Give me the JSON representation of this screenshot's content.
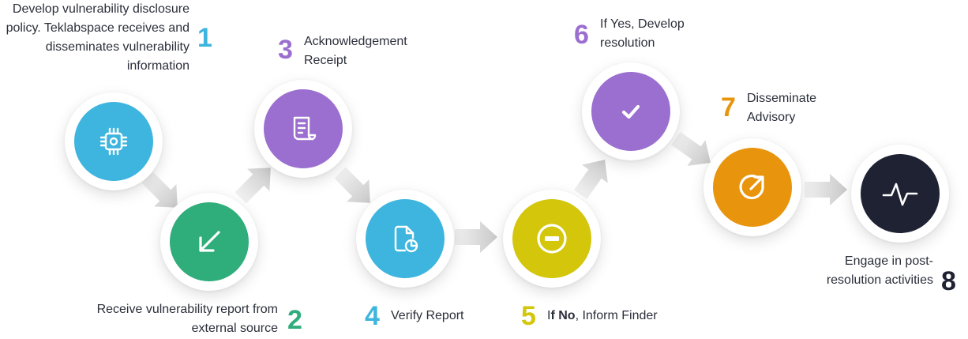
{
  "steps": [
    {
      "number": "1",
      "label": "Develop vulnerability disclosure policy. Teklabspace receives and disseminates vulnerability information",
      "color": "#3db5de",
      "icon": "chip-icon"
    },
    {
      "number": "2",
      "label": "Receive vulnerability report from external source",
      "color": "#2fad7b",
      "icon": "arrow-down-left-icon"
    },
    {
      "number": "3",
      "label": "Acknowledgement Receipt",
      "color": "#9b6fcf",
      "icon": "receipt-icon"
    },
    {
      "number": "4",
      "label": "Verify Report",
      "color": "#3db5de",
      "icon": "document-chart-icon"
    },
    {
      "number": "5",
      "label_prefix": "I",
      "label_bold": "f No",
      "label_suffix": ", Inform Finder",
      "color": "#d3c60b",
      "icon": "minus-circle-icon"
    },
    {
      "number": "6",
      "label": "If Yes, Develop resolution",
      "color": "#9b6fcf",
      "icon": "checkmark-icon"
    },
    {
      "number": "7",
      "label": "Disseminate Advisory",
      "color": "#e8940c",
      "icon": "share-arrow-icon"
    },
    {
      "number": "8",
      "label": "Engage in post-resolution activities",
      "color": "#1e2233",
      "icon": "pulse-icon"
    }
  ],
  "colors": {
    "connector": "#dcdcdc",
    "text": "#2b2f3a"
  }
}
